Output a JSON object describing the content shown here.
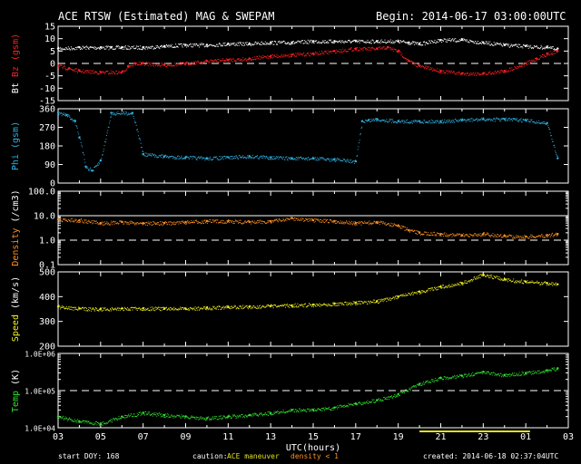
{
  "header": {
    "title": "ACE RTSW (Estimated) MAG & SWEPAM",
    "begin": "Begin: 2014-06-17 03:00:00UTC"
  },
  "footer": {
    "start_doy": "start DOY: 168",
    "caution": "caution:",
    "maneuver": "ACE maneuver",
    "density_lt": "density < 1",
    "created": "created: 2014-06-18 02:37:04UTC"
  },
  "colors": {
    "bt": "#ffffff",
    "bz": "#ff2020",
    "phi": "#30b0e0",
    "density": "#ff9020",
    "speed": "#f0f020",
    "temp": "#30e030",
    "maneuver": "#e0e020"
  },
  "chart_data": {
    "type": "scatter",
    "x_label": "UTC(hours)",
    "x_ticks": [
      "03",
      "05",
      "07",
      "09",
      "11",
      "13",
      "15",
      "17",
      "19",
      "21",
      "23",
      "01",
      "03"
    ],
    "x_range": [
      3,
      27
    ],
    "maneuver_range": [
      20,
      25.2
    ],
    "panels": [
      {
        "id": "mag",
        "ylabel_parts": [
          {
            "text": "Bt",
            "color": "#ffffff"
          },
          {
            "text": "Bz",
            "color": "#ff2020"
          },
          {
            "text": "(gsm)",
            "color": "#ff2020"
          }
        ],
        "y_range": [
          -15,
          15
        ],
        "scale": "linear",
        "ticks": [
          "15",
          "10",
          "5",
          "0",
          "-5",
          "-10",
          "-15"
        ],
        "tick_values": [
          15,
          10,
          5,
          0,
          -5,
          -10,
          -15
        ],
        "reference_lines": [
          {
            "value": 0,
            "style": "dashed"
          }
        ],
        "series": [
          {
            "key": "Bt",
            "color": "#ffffff",
            "x": [
              3,
              4,
              5,
              5.5,
              6,
              7,
              8,
              9,
              10,
              11,
              12,
              13,
              14,
              15,
              16,
              17,
              18,
              19,
              19.5,
              20,
              21,
              22,
              23,
              24,
              25,
              26,
              26.5
            ],
            "y": [
              6,
              6.5,
              6.5,
              6.5,
              6.5,
              6.5,
              7,
              7.5,
              7.5,
              8,
              8,
              8.5,
              8.5,
              9,
              9,
              9,
              9,
              9,
              8.5,
              8,
              9.5,
              9.5,
              8.5,
              7.5,
              7,
              6.5,
              6
            ]
          },
          {
            "key": "Bz",
            "color": "#ff2020",
            "x": [
              3,
              3.5,
              4,
              5,
              6,
              6.3,
              6.6,
              7,
              8,
              9,
              10,
              11,
              12,
              13,
              14,
              15,
              16,
              17,
              18,
              18.5,
              19,
              19.5,
              20,
              21,
              22,
              23,
              24,
              25,
              25.5,
              26,
              26.5
            ],
            "y": [
              -1,
              -2,
              -3,
              -3.5,
              -3.5,
              -1,
              0,
              0,
              -0.5,
              0,
              1,
              1.5,
              2,
              3,
              3.5,
              4,
              5,
              6,
              6,
              6.5,
              5,
              1,
              -1,
              -3,
              -4,
              -4,
              -3,
              0,
              2,
              4,
              5
            ]
          }
        ]
      },
      {
        "id": "phi",
        "ylabel_parts": [
          {
            "text": "Phi",
            "color": "#30b0e0"
          },
          {
            "text": "(gsm)",
            "color": "#30b0e0"
          }
        ],
        "y_range": [
          0,
          360
        ],
        "scale": "linear",
        "ticks": [
          "360",
          "270",
          "180",
          "90",
          "0"
        ],
        "tick_values": [
          360,
          270,
          180,
          90,
          0
        ],
        "reference_lines": [],
        "series": [
          {
            "key": "Phi",
            "color": "#30b0e0",
            "x": [
              3,
              3.4,
              3.8,
              4,
              4.3,
              4.6,
              5,
              5.5,
              6.5,
              7,
              8,
              9,
              10,
              11,
              12,
              13,
              14,
              15,
              16,
              17,
              17.3,
              17.6,
              18,
              19,
              20,
              21,
              22,
              23,
              24,
              25,
              26,
              26.5
            ],
            "y": [
              340,
              330,
              300,
              220,
              80,
              60,
              110,
              340,
              340,
              140,
              130,
              125,
              120,
              125,
              130,
              125,
              120,
              120,
              115,
              105,
              300,
              305,
              310,
              300,
              300,
              300,
              305,
              310,
              310,
              305,
              290,
              120
            ]
          }
        ]
      },
      {
        "id": "density",
        "ylabel_parts": [
          {
            "text": "Density",
            "color": "#ff9020"
          },
          {
            "text": "(/cm3)",
            "color": "#ffffff"
          }
        ],
        "y_range": [
          0.1,
          100
        ],
        "scale": "log",
        "ticks": [
          "100.0",
          "10.0",
          "1.0",
          "0.1"
        ],
        "tick_values": [
          100,
          10,
          1,
          0.1
        ],
        "reference_lines": [
          {
            "value": 10,
            "style": "solid"
          },
          {
            "value": 1,
            "style": "dashed"
          }
        ],
        "series": [
          {
            "key": "Density",
            "color": "#ff9020",
            "x": [
              3,
              4,
              5,
              6,
              7,
              8,
              9,
              10,
              11,
              12,
              13,
              14,
              15,
              16,
              17,
              18,
              19,
              19.5,
              20,
              21,
              22,
              23,
              24,
              25,
              26,
              26.5
            ],
            "y": [
              7,
              6.5,
              5,
              5.5,
              5,
              5,
              5.5,
              6,
              6,
              5.5,
              6,
              8,
              6.5,
              6,
              5,
              5.5,
              4,
              2.5,
              2,
              1.8,
              1.6,
              1.8,
              1.5,
              1.4,
              1.6,
              1.8
            ]
          }
        ]
      },
      {
        "id": "speed",
        "ylabel_parts": [
          {
            "text": "Speed",
            "color": "#f0f020"
          },
          {
            "text": "(km/s)",
            "color": "#ffffff"
          }
        ],
        "y_range": [
          200,
          500
        ],
        "scale": "linear",
        "ticks": [
          "500",
          "400",
          "300",
          "200"
        ],
        "tick_values": [
          500,
          400,
          300,
          200
        ],
        "reference_lines": [],
        "series": [
          {
            "key": "Speed",
            "color": "#f0f020",
            "x": [
              3,
              4,
              5,
              6,
              7,
              8,
              9,
              10,
              11,
              12,
              13,
              14,
              15,
              16,
              17,
              18,
              19,
              20,
              21,
              22,
              23,
              24,
              25,
              26,
              26.5
            ],
            "y": [
              360,
              352,
              350,
              352,
              353,
              352,
              352,
              355,
              358,
              360,
              362,
              365,
              368,
              372,
              375,
              382,
              400,
              420,
              440,
              455,
              490,
              470,
              460,
              455,
              450
            ]
          }
        ]
      },
      {
        "id": "temp",
        "ylabel_parts": [
          {
            "text": "Temp",
            "color": "#30e030"
          },
          {
            "text": "(K)",
            "color": "#ffffff"
          }
        ],
        "y_range": [
          10000,
          1000000
        ],
        "scale": "log",
        "ticks": [
          "1.0E+06",
          "1.0E+05",
          "1.0E+04"
        ],
        "tick_values": [
          1000000,
          100000,
          10000
        ],
        "reference_lines": [
          {
            "value": 100000,
            "style": "dashed"
          }
        ],
        "series": [
          {
            "key": "Temp",
            "color": "#30e030",
            "x": [
              3,
              4,
              5,
              6,
              7,
              8,
              9,
              10,
              11,
              12,
              13,
              14,
              15,
              16,
              17,
              18,
              19,
              20,
              21,
              22,
              23,
              24,
              25,
              26,
              26.5
            ],
            "y": [
              20000,
              15000,
              13000,
              20000,
              25000,
              22000,
              20000,
              18000,
              20000,
              22000,
              25000,
              30000,
              30000,
              35000,
              45000,
              55000,
              80000,
              150000,
              220000,
              250000,
              320000,
              260000,
              300000,
              350000,
              400000
            ]
          }
        ]
      }
    ]
  }
}
